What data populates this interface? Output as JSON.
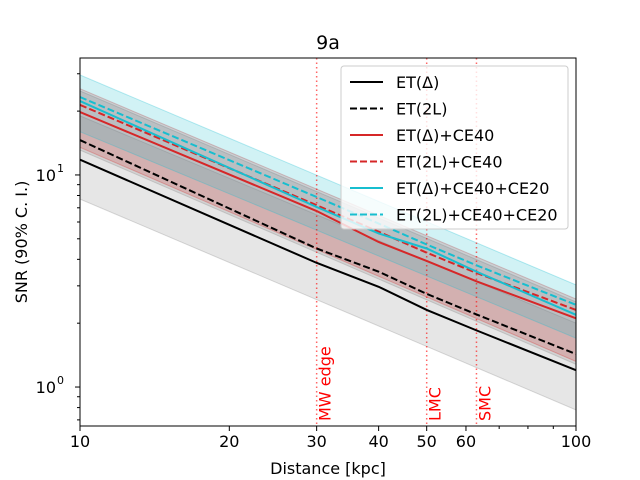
{
  "chart_data": {
    "type": "line",
    "title": "9a",
    "xlabel": "Distance [kpc]",
    "ylabel": "SNR (90% C. I.)",
    "xscale": "log",
    "yscale": "log",
    "xlim": [
      10,
      100
    ],
    "ylim": [
      0.655,
      35.6
    ],
    "xticks": [
      {
        "v": 10,
        "label": "10"
      },
      {
        "v": 20,
        "label": "20"
      },
      {
        "v": 30,
        "label": "30"
      },
      {
        "v": 40,
        "label": "40"
      },
      {
        "v": 50,
        "label": "50"
      },
      {
        "v": 60,
        "label": "60"
      },
      {
        "v": 100,
        "label": "100"
      }
    ],
    "xminor": [
      70,
      80,
      90
    ],
    "yticks": [
      {
        "v": 1,
        "base": "10",
        "exp": "0"
      },
      {
        "v": 10,
        "base": "10",
        "exp": "1"
      }
    ],
    "yminor": [
      0.7,
      0.8,
      0.9,
      2,
      3,
      4,
      5,
      6,
      7,
      8,
      9,
      20,
      30
    ],
    "grid": false,
    "legend_position": "top-right",
    "x": [
      10,
      30,
      40,
      50,
      63,
      100
    ],
    "series": [
      {
        "name": "ET(Δ)",
        "color": "#000000",
        "dash": false,
        "values": [
          11.8,
          3.85,
          2.97,
          2.31,
          1.85,
          1.2
        ]
      },
      {
        "name": "ET(2L)",
        "color": "#000000",
        "dash": true,
        "values": [
          14.6,
          4.5,
          3.5,
          2.75,
          2.2,
          1.43
        ]
      },
      {
        "name": "ET(Δ)+CE40",
        "color": "#d62728",
        "dash": false,
        "values": [
          19.8,
          6.76,
          4.83,
          3.93,
          3.15,
          2.11
        ]
      },
      {
        "name": "ET(2L)+CE40",
        "color": "#d62728",
        "dash": true,
        "values": [
          21.4,
          7.2,
          5.4,
          4.3,
          3.45,
          2.31
        ]
      },
      {
        "name": "ET(Δ)+CE40+CE20",
        "color": "#17becf",
        "dash": false,
        "values": [
          22.3,
          7.06,
          5.3,
          4.5,
          3.5,
          2.19
        ]
      },
      {
        "name": "ET(2L)+CE40+CE20",
        "color": "#17becf",
        "dash": true,
        "values": [
          23.3,
          7.87,
          5.9,
          4.7,
          3.75,
          2.44
        ]
      }
    ],
    "bands": [
      {
        "color": "#808080",
        "x": [
          10,
          100
        ],
        "lower": [
          7.7,
          0.78
        ],
        "upper": [
          19.0,
          2.0
        ]
      },
      {
        "color": "#808080",
        "x": [
          10,
          100
        ],
        "lower": [
          13.1,
          1.28
        ],
        "upper": [
          24.9,
          2.52
        ]
      },
      {
        "color": "#d62728",
        "x": [
          10,
          100
        ],
        "lower": [
          13.5,
          1.32
        ],
        "upper": [
          25.5,
          2.6
        ]
      },
      {
        "color": "#17becf",
        "x": [
          10,
          100
        ],
        "lower": [
          16.0,
          1.7
        ],
        "upper": [
          29.6,
          3.03
        ]
      }
    ],
    "vlines": [
      {
        "x": 30,
        "label": "MW edge"
      },
      {
        "x": 50,
        "label": "LMC"
      },
      {
        "x": 63,
        "label": "SMC"
      }
    ],
    "vline_color": "#ff0000"
  }
}
